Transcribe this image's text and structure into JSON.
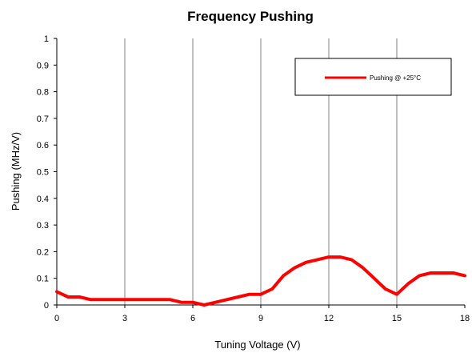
{
  "chart_data": {
    "type": "line",
    "title": "Frequency Pushing",
    "xlabel": "Tuning Voltage (V)",
    "ylabel": "Pushing (MHz/V)",
    "xlim": [
      0,
      18
    ],
    "ylim": [
      0,
      1
    ],
    "xticks": [
      0,
      3,
      6,
      9,
      12,
      15,
      18
    ],
    "xtick_labels": [
      "0",
      "3",
      "6",
      "9",
      "12",
      "15",
      "18"
    ],
    "yticks": [
      0,
      0.1,
      0.2,
      0.3,
      0.4,
      0.5,
      0.6,
      0.7,
      0.8,
      0.9,
      1
    ],
    "ytick_labels": [
      "0",
      "0.1",
      "0.2",
      "0.3",
      "0.4",
      "0.5",
      "0.6",
      "0.7",
      "0.8",
      "0.9",
      "1"
    ],
    "grid": {
      "x": true,
      "y": false
    },
    "legend": {
      "position": "top-right"
    },
    "series": [
      {
        "name": "Pushing @ +25°C",
        "color": "#ff0000",
        "x": [
          0,
          0.5,
          1,
          1.5,
          2,
          2.5,
          3,
          3.5,
          4,
          4.5,
          5,
          5.5,
          6,
          6.5,
          7,
          7.5,
          8,
          8.5,
          9,
          9.5,
          10,
          10.5,
          11,
          11.5,
          12,
          12.5,
          13,
          13.5,
          14,
          14.5,
          15,
          15.5,
          16,
          16.5,
          17,
          17.5,
          18
        ],
        "y": [
          0.05,
          0.03,
          0.03,
          0.02,
          0.02,
          0.02,
          0.02,
          0.02,
          0.02,
          0.02,
          0.02,
          0.01,
          0.01,
          0.0,
          0.01,
          0.02,
          0.03,
          0.04,
          0.04,
          0.06,
          0.11,
          0.14,
          0.16,
          0.17,
          0.18,
          0.18,
          0.17,
          0.14,
          0.1,
          0.06,
          0.04,
          0.08,
          0.11,
          0.12,
          0.12,
          0.12,
          0.11
        ]
      }
    ]
  }
}
